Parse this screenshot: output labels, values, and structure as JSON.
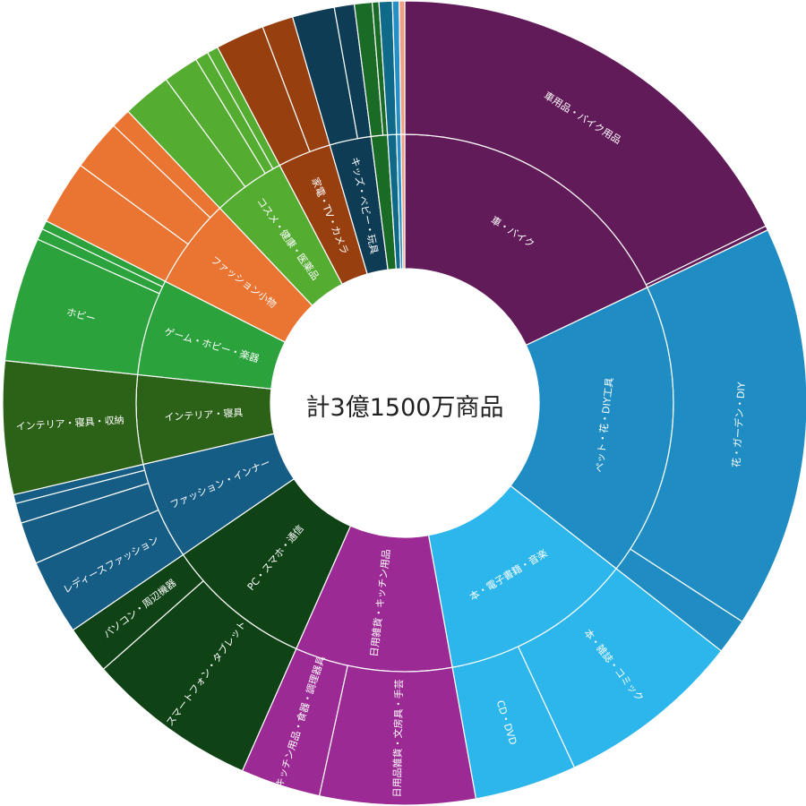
{
  "chart_data": {
    "type": "sunburst",
    "center_label": "計3億1500万商品",
    "categories": [
      {
        "name": "車・バイク",
        "value": 20.1,
        "color": "#621b59",
        "children": [
          {
            "name": "車用品・バイク用品",
            "value": 19.9
          },
          {
            "name": "",
            "value": 0.2
          }
        ]
      },
      {
        "name": "ペット・花・DIY工具",
        "value": 19.8,
        "color": "#1f8dc3",
        "children": [
          {
            "name": "花・ガーデン・DIY",
            "value": 18.2
          },
          {
            "name": "",
            "value": 1.6
          }
        ]
      },
      {
        "name": "本・電子書籍・音楽",
        "value": 13.0,
        "color": "#2cb6ec",
        "children": [
          {
            "name": "本・雑誌・コミック",
            "value": 8.4
          },
          {
            "name": "CD・DVD",
            "value": 4.6
          }
        ]
      },
      {
        "name": "日用雑貨・キッチン用品",
        "value": 10.6,
        "color": "#9b2a94",
        "children": [
          {
            "name": "日用品雑貨・文房具・手芸",
            "value": 7.0
          },
          {
            "name": "キッチン用品・食器・調理器具",
            "value": 3.6
          }
        ]
      },
      {
        "name": "PC・スマホ・通信",
        "value": 9.9,
        "color": "#0f4315",
        "children": [
          {
            "name": "スマートフォン・タブレット",
            "value": 7.7
          },
          {
            "name": "パソコン・周辺機器",
            "value": 2.2
          }
        ]
      },
      {
        "name": "ファッション・インナー",
        "value": 6.6,
        "color": "#165d86",
        "children": [
          {
            "name": "レディースファッション",
            "value": 3.4
          },
          {
            "name": "",
            "value": 1.9
          },
          {
            "name": "",
            "value": 0.9
          },
          {
            "name": "",
            "value": 0.4
          }
        ]
      },
      {
        "name": "インテリア・寝具",
        "value": 6.0,
        "color": "#2c6118",
        "children": [
          {
            "name": "インテリア・寝具・収納",
            "value": 6.0
          }
        ]
      },
      {
        "name": "ゲーム・ホビー・楽器",
        "value": 6.5,
        "color": "#2ba23c",
        "children": [
          {
            "name": "ホビー",
            "value": 5.6
          },
          {
            "name": "",
            "value": 0.5
          },
          {
            "name": "",
            "value": 0.4
          }
        ]
      },
      {
        "name": "ファッション小物",
        "value": 6.1,
        "color": "#ea7533",
        "children": [
          {
            "name": "",
            "value": 2.9
          },
          {
            "name": "",
            "value": 2.3
          },
          {
            "name": "",
            "value": 0.9
          }
        ]
      },
      {
        "name": "コスメ・健康・医薬品",
        "value": 4.9,
        "color": "#54ac31",
        "children": [
          {
            "name": "",
            "value": 2.2
          },
          {
            "name": "",
            "value": 1.6
          },
          {
            "name": "",
            "value": 0.6
          },
          {
            "name": "",
            "value": 0.5
          }
        ]
      },
      {
        "name": "家電・TV・カメラ",
        "value": 3.6,
        "color": "#983f10",
        "children": [
          {
            "name": "",
            "value": 2.2
          },
          {
            "name": "",
            "value": 1.4
          }
        ]
      },
      {
        "name": "キッズ・ベビー・玩具",
        "value": 2.8,
        "color": "#0f3c55",
        "children": [
          {
            "name": "",
            "value": 1.9
          },
          {
            "name": "",
            "value": 0.9
          }
        ]
      },
      {
        "name": "",
        "value": 1.1,
        "color": "#1a6b26",
        "children": [
          {
            "name": "",
            "value": 0.8
          },
          {
            "name": "",
            "value": 0.3
          }
        ]
      },
      {
        "name": "",
        "value": 0.6,
        "color": "#0f6a8a",
        "children": [
          {
            "name": "",
            "value": 0.6
          }
        ]
      },
      {
        "name": "",
        "value": 0.3,
        "color": "#2490c7",
        "children": [
          {
            "name": "",
            "value": 0.3
          }
        ]
      },
      {
        "name": "",
        "value": 0.25,
        "color": "#f0a080",
        "children": [
          {
            "name": "",
            "value": 0.25
          }
        ]
      }
    ]
  }
}
